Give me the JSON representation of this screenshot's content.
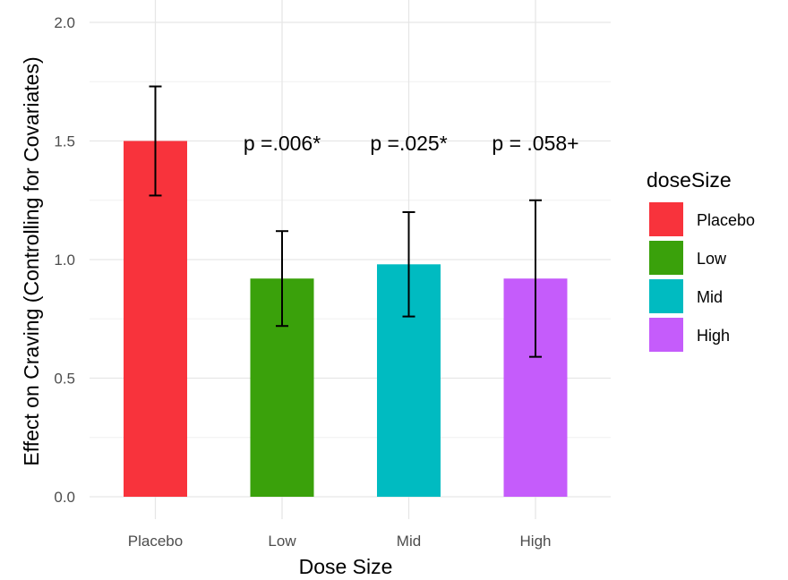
{
  "chart_data": {
    "type": "bar",
    "categories": [
      "Placebo",
      "Low",
      "Mid",
      "High"
    ],
    "values": [
      1.5,
      0.92,
      0.98,
      0.92
    ],
    "error_low": [
      1.27,
      0.72,
      0.76,
      0.59
    ],
    "error_high": [
      1.73,
      1.12,
      1.2,
      1.25
    ],
    "colors": [
      "#F8333C",
      "#3AA10B",
      "#00BBC1",
      "#C55CFB"
    ],
    "annotations": [
      "",
      "p =.006*",
      "p =.025*",
      "p = .058+"
    ],
    "xlabel": "Dose Size",
    "ylabel": "Effect on Craving (Controlling for Covariates)",
    "ylim": [
      0,
      2.0
    ],
    "yticks": [
      0.0,
      0.5,
      1.0,
      1.5,
      2.0
    ],
    "ytick_labels": [
      "0.0",
      "0.5",
      "1.0",
      "1.5",
      "2.0"
    ],
    "grid": true,
    "legend": {
      "title": "doseSize",
      "position": "right",
      "entries": [
        "Placebo",
        "Low",
        "Mid",
        "High"
      ]
    }
  }
}
